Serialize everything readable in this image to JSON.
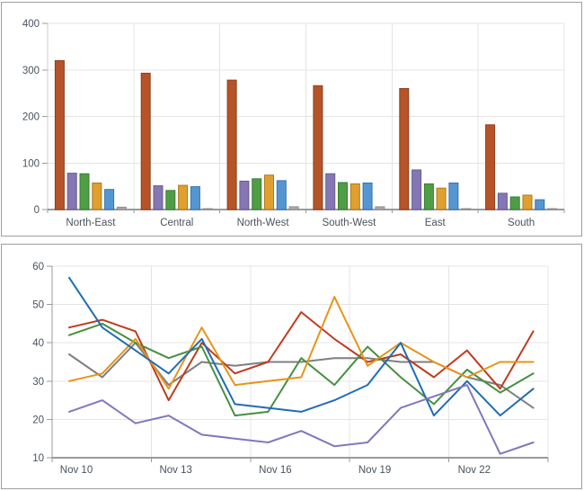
{
  "page": {
    "background": "#ffffff",
    "panel_border": "#9e9e9e"
  },
  "style": {
    "grid_color": "#e4e4e4",
    "axis_color": "#9a9a9a",
    "axis_light_color": "#cccccc",
    "label_color": "#49535e",
    "font_size": 11.5
  },
  "chart_data": [
    {
      "type": "bar",
      "title": "",
      "xlabel": "",
      "ylabel": "",
      "ylim": [
        0,
        400
      ],
      "yticks": [
        0,
        100,
        200,
        300,
        400
      ],
      "grid": true,
      "legend": "none",
      "categories": [
        "North-East",
        "Central",
        "North-West",
        "South-West",
        "East",
        "South"
      ],
      "series": [
        {
          "name": "rust",
          "fill": "#b65427",
          "stroke": "#8a3f1e",
          "values": [
            320,
            293,
            278,
            266,
            260,
            182
          ]
        },
        {
          "name": "purple",
          "fill": "#8577b3",
          "stroke": "#675a96",
          "values": [
            78,
            51,
            61,
            77,
            85,
            35
          ]
        },
        {
          "name": "green",
          "fill": "#4f9d45",
          "stroke": "#3a7d35",
          "values": [
            77,
            41,
            66,
            58,
            55,
            27
          ]
        },
        {
          "name": "orange",
          "fill": "#e0a030",
          "stroke": "#ad791f",
          "values": [
            57,
            52,
            74,
            55,
            46,
            31
          ]
        },
        {
          "name": "blue",
          "fill": "#5596d2",
          "stroke": "#3672ac",
          "values": [
            43,
            49,
            62,
            57,
            57,
            21
          ]
        },
        {
          "name": "gray",
          "fill": "#a9a9a9",
          "stroke": "#8f8f8f",
          "values": [
            5,
            2,
            6,
            6,
            2,
            2
          ]
        }
      ]
    },
    {
      "type": "line",
      "title": "",
      "xlabel": "",
      "ylabel": "",
      "ylim": [
        10,
        60
      ],
      "yticks": [
        10,
        20,
        30,
        40,
        50,
        60
      ],
      "grid": true,
      "legend": "none",
      "n_points": 15,
      "x_tick_labels": [
        "Nov 10",
        "Nov 13",
        "Nov 16",
        "Nov 19",
        "Nov 22"
      ],
      "x_label_every": 3,
      "series": [
        {
          "name": "gray",
          "color": "#7f7f7f",
          "values": [
            37,
            31,
            40,
            29,
            35,
            34,
            35,
            35,
            36,
            36,
            35,
            35,
            31,
            29,
            23
          ]
        },
        {
          "name": "red",
          "color": "#bf3c20",
          "values": [
            44,
            46,
            43,
            25,
            40,
            32,
            35,
            48,
            41,
            35,
            37,
            31,
            38,
            28,
            43
          ]
        },
        {
          "name": "green",
          "color": "#459140",
          "values": [
            42,
            45,
            40,
            36,
            39,
            21,
            22,
            36,
            29,
            39,
            31,
            24,
            33,
            27,
            32
          ]
        },
        {
          "name": "orange",
          "color": "#e79419",
          "values": [
            30,
            32,
            41,
            28,
            44,
            29,
            30,
            31,
            52,
            34,
            40,
            35,
            31,
            35,
            35
          ]
        },
        {
          "name": "blue",
          "color": "#1f6db5",
          "values": [
            57,
            44,
            38,
            32,
            41,
            24,
            23,
            22,
            25,
            29,
            40,
            21,
            30,
            21,
            28
          ]
        },
        {
          "name": "purple",
          "color": "#8576bd",
          "values": [
            22,
            25,
            19,
            21,
            16,
            15,
            14,
            17,
            13,
            14,
            23,
            26,
            29,
            11,
            14
          ]
        }
      ]
    }
  ]
}
